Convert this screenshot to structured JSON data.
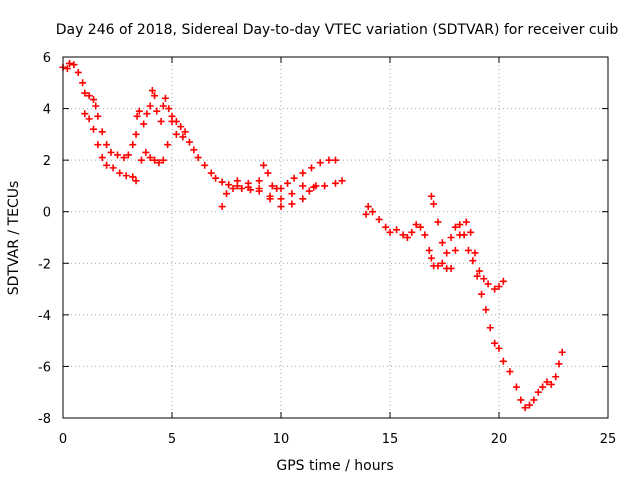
{
  "chart_data": {
    "type": "scatter",
    "title": "Day 246 of 2018, Sidereal Day-to-day VTEC variation (SDTVAR) for receiver cuib",
    "xlabel": "GPS time / hours",
    "ylabel": "SDTVAR / TECUs",
    "xlim": [
      0,
      25
    ],
    "ylim": [
      -8,
      6
    ],
    "xticks": [
      0,
      5,
      10,
      15,
      20,
      25
    ],
    "yticks": [
      -8,
      -6,
      -4,
      -2,
      0,
      2,
      4,
      6
    ],
    "grid": true,
    "marker": "+",
    "color": "#ff0000",
    "series": [
      {
        "name": "SDTVAR",
        "points": [
          [
            0.0,
            5.6
          ],
          [
            0.2,
            5.55
          ],
          [
            0.3,
            5.75
          ],
          [
            0.5,
            5.7
          ],
          [
            0.7,
            5.4
          ],
          [
            0.9,
            5.0
          ],
          [
            1.0,
            4.6
          ],
          [
            1.2,
            4.5
          ],
          [
            1.4,
            4.35
          ],
          [
            1.5,
            4.1
          ],
          [
            1.6,
            3.7
          ],
          [
            1.8,
            3.1
          ],
          [
            2.0,
            2.6
          ],
          [
            2.2,
            2.3
          ],
          [
            2.5,
            2.2
          ],
          [
            2.8,
            2.1
          ],
          [
            3.0,
            2.2
          ],
          [
            3.2,
            2.6
          ],
          [
            3.35,
            3.0
          ],
          [
            3.4,
            3.7
          ],
          [
            3.5,
            3.9
          ],
          [
            3.7,
            3.4
          ],
          [
            3.85,
            3.8
          ],
          [
            4.0,
            4.1
          ],
          [
            4.1,
            4.7
          ],
          [
            4.2,
            4.5
          ],
          [
            4.3,
            3.9
          ],
          [
            4.5,
            3.5
          ],
          [
            4.6,
            4.1
          ],
          [
            4.7,
            4.4
          ],
          [
            4.85,
            4.0
          ],
          [
            5.0,
            3.7
          ],
          [
            5.2,
            3.5
          ],
          [
            5.4,
            3.3
          ],
          [
            5.6,
            3.1
          ],
          [
            5.8,
            2.7
          ],
          [
            6.0,
            2.4
          ],
          [
            6.2,
            2.1
          ],
          [
            6.5,
            1.8
          ],
          [
            6.8,
            1.5
          ],
          [
            7.0,
            1.3
          ],
          [
            7.3,
            1.15
          ],
          [
            7.6,
            1.05
          ],
          [
            8.0,
            1.0
          ],
          [
            8.5,
            0.95
          ],
          [
            9.0,
            0.8
          ],
          [
            9.5,
            0.6
          ],
          [
            10.0,
            0.5
          ],
          [
            10.5,
            0.7
          ],
          [
            11.0,
            1.0
          ],
          [
            11.5,
            0.95
          ],
          [
            12.0,
            1.0
          ],
          [
            12.5,
            1.1
          ],
          [
            12.8,
            1.2
          ],
          [
            1.0,
            3.8
          ],
          [
            1.2,
            3.6
          ],
          [
            1.4,
            3.2
          ],
          [
            1.6,
            2.6
          ],
          [
            1.8,
            2.1
          ],
          [
            2.0,
            1.8
          ],
          [
            2.3,
            1.7
          ],
          [
            2.6,
            1.5
          ],
          [
            2.9,
            1.4
          ],
          [
            3.2,
            1.35
          ],
          [
            3.35,
            1.2
          ],
          [
            3.6,
            2.0
          ],
          [
            3.8,
            2.3
          ],
          [
            4.0,
            2.1
          ],
          [
            4.2,
            2.0
          ],
          [
            4.4,
            1.9
          ],
          [
            4.6,
            2.0
          ],
          [
            4.8,
            2.6
          ],
          [
            5.0,
            3.5
          ],
          [
            5.2,
            3.0
          ],
          [
            5.5,
            2.9
          ],
          [
            7.3,
            0.2
          ],
          [
            7.5,
            0.7
          ],
          [
            7.8,
            0.9
          ],
          [
            8.2,
            0.9
          ],
          [
            8.6,
            0.85
          ],
          [
            9.0,
            1.2
          ],
          [
            9.2,
            1.8
          ],
          [
            9.4,
            1.5
          ],
          [
            9.6,
            1.0
          ],
          [
            9.8,
            0.9
          ],
          [
            10.0,
            0.9
          ],
          [
            10.3,
            1.1
          ],
          [
            10.6,
            1.3
          ],
          [
            11.0,
            1.5
          ],
          [
            11.4,
            1.7
          ],
          [
            11.8,
            1.9
          ],
          [
            12.2,
            2.0
          ],
          [
            12.5,
            2.0
          ],
          [
            8.0,
            1.2
          ],
          [
            8.5,
            1.1
          ],
          [
            9.0,
            0.9
          ],
          [
            9.5,
            0.5
          ],
          [
            10.0,
            0.2
          ],
          [
            10.5,
            0.3
          ],
          [
            11.0,
            0.5
          ],
          [
            11.3,
            0.8
          ],
          [
            11.6,
            1.0
          ],
          [
            13.9,
            -0.1
          ],
          [
            14.0,
            0.2
          ],
          [
            14.2,
            0.0
          ],
          [
            14.5,
            -0.3
          ],
          [
            14.8,
            -0.6
          ],
          [
            15.0,
            -0.8
          ],
          [
            15.3,
            -0.7
          ],
          [
            15.6,
            -0.9
          ],
          [
            15.8,
            -1.0
          ],
          [
            16.0,
            -0.8
          ],
          [
            16.2,
            -0.5
          ],
          [
            16.4,
            -0.6
          ],
          [
            16.6,
            -0.9
          ],
          [
            16.8,
            -1.5
          ],
          [
            16.9,
            -1.8
          ],
          [
            17.0,
            -2.1
          ],
          [
            17.2,
            -2.1
          ],
          [
            17.4,
            -2.0
          ],
          [
            17.6,
            -1.6
          ],
          [
            17.8,
            -1.0
          ],
          [
            18.0,
            -0.6
          ],
          [
            18.2,
            -0.5
          ],
          [
            18.4,
            -0.9
          ],
          [
            18.6,
            -1.5
          ],
          [
            18.8,
            -1.9
          ],
          [
            19.0,
            -2.5
          ],
          [
            19.2,
            -3.2
          ],
          [
            19.4,
            -3.8
          ],
          [
            19.6,
            -4.5
          ],
          [
            19.8,
            -5.1
          ],
          [
            20.0,
            -5.3
          ],
          [
            20.2,
            -5.8
          ],
          [
            20.5,
            -6.2
          ],
          [
            20.8,
            -6.8
          ],
          [
            21.0,
            -7.3
          ],
          [
            21.2,
            -7.6
          ],
          [
            21.4,
            -7.5
          ],
          [
            21.6,
            -7.3
          ],
          [
            21.8,
            -7.0
          ],
          [
            22.0,
            -6.8
          ],
          [
            22.2,
            -6.6
          ],
          [
            22.4,
            -6.7
          ],
          [
            22.6,
            -6.4
          ],
          [
            22.75,
            -5.9
          ],
          [
            22.9,
            -5.45
          ],
          [
            16.9,
            0.6
          ],
          [
            17.0,
            0.3
          ],
          [
            17.2,
            -0.4
          ],
          [
            17.4,
            -1.2
          ],
          [
            17.6,
            -2.2
          ],
          [
            17.8,
            -2.2
          ],
          [
            18.0,
            -1.5
          ],
          [
            18.2,
            -0.9
          ],
          [
            18.5,
            -0.4
          ],
          [
            18.7,
            -0.8
          ],
          [
            18.9,
            -1.6
          ],
          [
            19.1,
            -2.3
          ],
          [
            19.3,
            -2.6
          ],
          [
            19.5,
            -2.8
          ],
          [
            19.8,
            -3.0
          ],
          [
            20.0,
            -2.9
          ],
          [
            20.2,
            -2.7
          ]
        ]
      }
    ]
  }
}
